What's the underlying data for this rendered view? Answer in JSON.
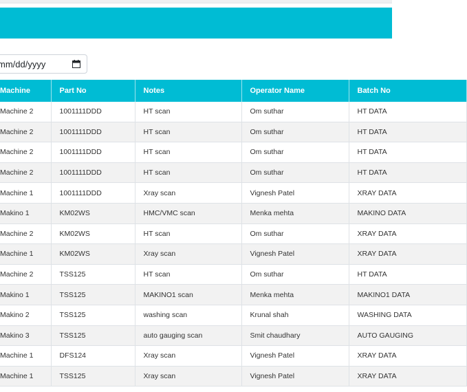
{
  "date_filter": {
    "value": "mm/dd/yyyy",
    "icon": "calendar-icon"
  },
  "colors": {
    "accent": "#00bcd4",
    "row_stripe": "#f2f2f2"
  },
  "table": {
    "headers": {
      "machine": "Machine",
      "part_no": "Part No",
      "notes": "Notes",
      "operator": "Operator Name",
      "batch": "Batch No"
    },
    "rows": [
      {
        "machine": "Machine 2",
        "part_no": "1001111DDD",
        "notes": "HT scan",
        "operator": "Om suthar",
        "batch": "HT DATA"
      },
      {
        "machine": "Machine 2",
        "part_no": "1001111DDD",
        "notes": "HT scan",
        "operator": "Om suthar",
        "batch": "HT DATA"
      },
      {
        "machine": "Machine 2",
        "part_no": "1001111DDD",
        "notes": "HT scan",
        "operator": "Om suthar",
        "batch": "HT DATA"
      },
      {
        "machine": "Machine 2",
        "part_no": "1001111DDD",
        "notes": "HT scan",
        "operator": "Om suthar",
        "batch": "HT DATA"
      },
      {
        "machine": "Machine 1",
        "part_no": "1001111DDD",
        "notes": "Xray scan",
        "operator": "Vignesh Patel",
        "batch": "XRAY DATA"
      },
      {
        "machine": "Makino 1",
        "part_no": "KM02WS",
        "notes": "HMC/VMC scan",
        "operator": "Menka mehta",
        "batch": "MAKINO DATA"
      },
      {
        "machine": "Machine 2",
        "part_no": "KM02WS",
        "notes": "HT scan",
        "operator": "Om suthar",
        "batch": "XRAY DATA"
      },
      {
        "machine": "Machine 1",
        "part_no": "KM02WS",
        "notes": "Xray scan",
        "operator": "Vignesh Patel",
        "batch": "XRAY DATA"
      },
      {
        "machine": "Machine 2",
        "part_no": "TSS125",
        "notes": "HT scan",
        "operator": "Om suthar",
        "batch": "HT DATA"
      },
      {
        "machine": "Makino 1",
        "part_no": "TSS125",
        "notes": "MAKINO1 scan",
        "operator": "Menka mehta",
        "batch": "MAKINO1 DATA"
      },
      {
        "machine": "Makino 2",
        "part_no": "TSS125",
        "notes": "washing scan",
        "operator": "Krunal shah",
        "batch": "WASHING DATA"
      },
      {
        "machine": "Makino 3",
        "part_no": "TSS125",
        "notes": "auto gauging scan",
        "operator": "Smit chaudhary",
        "batch": "AUTO GAUGING"
      },
      {
        "machine": "Machine 1",
        "part_no": "DFS124",
        "notes": "Xray scan",
        "operator": "Vignesh Patel",
        "batch": "XRAY DATA"
      },
      {
        "machine": "Machine 1",
        "part_no": "TSS125",
        "notes": "Xray scan",
        "operator": "Vignesh Patel",
        "batch": "XRAY DATA"
      }
    ]
  }
}
